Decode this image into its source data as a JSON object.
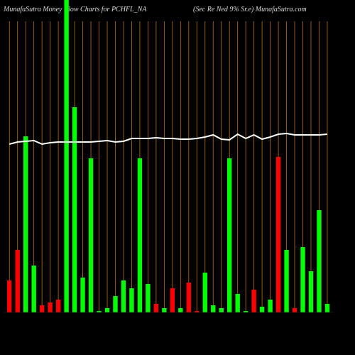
{
  "chart_data": {
    "type": "bar",
    "title": "MunafaSutra  Money Flow  Charts for PCHFL_NA",
    "subtitle": "(Sec Re   Ned 9% Sr.e) MunafaSutra.com",
    "categories": [
      null,
      null,
      null,
      null,
      null,
      null,
      null,
      null,
      null,
      null,
      null,
      null,
      null,
      null,
      null,
      null,
      null,
      null,
      null,
      null,
      null,
      null,
      null,
      null,
      null,
      null,
      null,
      null,
      null,
      null,
      null,
      null,
      null,
      null,
      null,
      null,
      null,
      null,
      null,
      null
    ],
    "series": [
      {
        "type": "bar",
        "values": [
          45,
          88,
          248,
          66,
          10,
          14,
          18,
          440,
          289,
          49,
          217,
          2,
          6,
          23,
          45,
          34,
          217,
          40,
          12,
          6,
          34,
          6,
          42,
          2,
          56,
          10,
          6,
          217,
          26,
          2,
          32,
          8,
          18,
          219,
          88,
          6,
          92,
          58,
          144,
          12
        ],
        "colors": [
          "#ff0000",
          "#ff0000",
          "#00ff00",
          "#00ff00",
          "#ff0000",
          "#ff0000",
          "#ff0000",
          "#00ff00",
          "#00ff00",
          "#00ff00",
          "#00ff00",
          "#00ff00",
          "#00ff00",
          "#00ff00",
          "#00ff00",
          "#00ff00",
          "#00ff00",
          "#00ff00",
          "#ff0000",
          "#00ff00",
          "#ff0000",
          "#00ff00",
          "#ff0000",
          "#ff0000",
          "#00ff00",
          "#00ff00",
          "#00ff00",
          "#00ff00",
          "#00ff00",
          "#00ff00",
          "#ff0000",
          "#00ff00",
          "#00ff00",
          "#ff0000",
          "#00ff00",
          "#ff0000",
          "#00ff00",
          "#00ff00",
          "#00ff00",
          "#00ff00"
        ]
      },
      {
        "type": "line",
        "color": "#ffffff",
        "values": [
          237,
          240,
          241,
          242,
          237,
          239,
          240,
          240,
          240,
          240,
          240,
          241,
          242,
          240,
          241,
          245,
          245,
          245,
          246,
          245,
          245,
          244,
          244,
          245,
          247,
          250,
          244,
          243,
          251,
          245,
          250,
          244,
          247,
          251,
          252,
          250,
          250,
          250,
          250,
          251
        ]
      }
    ],
    "ylim": [
      0,
      440
    ],
    "grid_color": "#b8731b"
  }
}
